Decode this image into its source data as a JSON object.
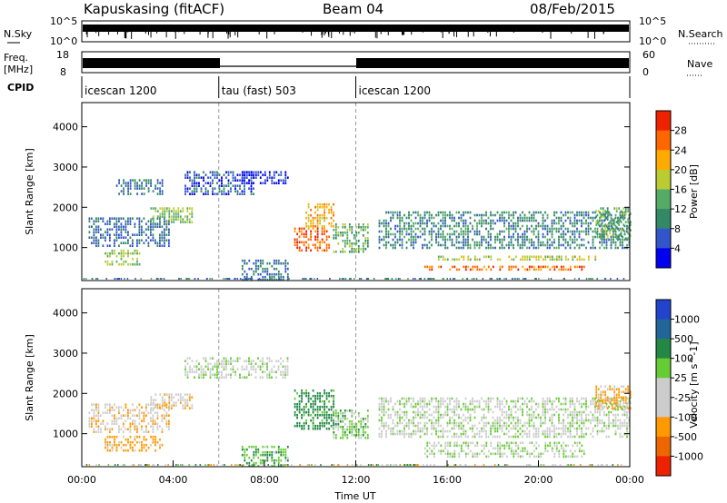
{
  "header": {
    "station": "Kapuskasing (fitACF)",
    "beam": "Beam 04",
    "date": "08/Feb/2015"
  },
  "panels": {
    "nsky": {
      "label": "N.Sky",
      "ticks": [
        "10^5",
        "10^0"
      ],
      "right_label": "N.Search",
      "right_ticks": [
        "10^5",
        "10^0"
      ]
    },
    "freq": {
      "label_line1": "Freq.",
      "label_line2": "[MHz]",
      "ticks": [
        "18",
        "8"
      ],
      "right_label": "Nave",
      "right_ticks": [
        "60",
        "0"
      ]
    },
    "cpid": {
      "label": "CPID",
      "segments": [
        {
          "start_hour": 0,
          "end_hour": 6,
          "name": "icescan 1200"
        },
        {
          "start_hour": 6,
          "end_hour": 12,
          "name": "tau (fast) 503"
        },
        {
          "start_hour": 12,
          "end_hour": 24,
          "name": "icescan 1200"
        }
      ]
    }
  },
  "chart_data": [
    {
      "type": "heatmap",
      "title": "Power",
      "xlabel": "",
      "ylabel": "Slant Range [km]",
      "ylim": [
        180,
        4600
      ],
      "yticks": [
        "1000",
        "2000",
        "3000",
        "4000"
      ],
      "colorbar_label": "Power [dB]",
      "colorbar_ticks": [
        "4",
        "8",
        "12",
        "16",
        "20",
        "24",
        "28"
      ],
      "colorbar_colors": [
        "#0000ee",
        "#3355cc",
        "#338866",
        "#55aa66",
        "#bbcc33",
        "#ffaa00",
        "#ff6600",
        "#ee2200"
      ],
      "regions": [
        {
          "t0": 0.3,
          "t1": 3.8,
          "r0": 1050,
          "r1": 1750,
          "value": 8
        },
        {
          "t0": 1.0,
          "t1": 2.5,
          "r0": 600,
          "r1": 950,
          "value": 16
        },
        {
          "t0": 1.5,
          "t1": 3.5,
          "r0": 2300,
          "r1": 2700,
          "value": 8
        },
        {
          "t0": 3.0,
          "t1": 4.8,
          "r0": 1600,
          "r1": 2000,
          "value": 16
        },
        {
          "t0": 4.5,
          "t1": 7.5,
          "r0": 2300,
          "r1": 2900,
          "value": 6
        },
        {
          "t0": 7.0,
          "t1": 9.0,
          "r0": 2600,
          "r1": 2900,
          "value": 4
        },
        {
          "t0": 7.0,
          "t1": 9.0,
          "r0": 200,
          "r1": 700,
          "value": 8
        },
        {
          "t0": 9.3,
          "t1": 10.8,
          "r0": 900,
          "r1": 1500,
          "value": 27
        },
        {
          "t0": 9.8,
          "t1": 11.0,
          "r0": 1500,
          "r1": 2100,
          "value": 22
        },
        {
          "t0": 11.0,
          "t1": 12.5,
          "r0": 900,
          "r1": 1600,
          "value": 14
        },
        {
          "t0": 13.0,
          "t1": 24.0,
          "r0": 1000,
          "r1": 1900,
          "value": 10
        },
        {
          "t0": 15.0,
          "t1": 22.0,
          "r0": 450,
          "r1": 550,
          "value": 26
        },
        {
          "t0": 15.5,
          "t1": 22.5,
          "r0": 700,
          "r1": 800,
          "value": 18
        },
        {
          "t0": 22.5,
          "t1": 24.0,
          "r0": 1200,
          "r1": 2000,
          "value": 14
        }
      ]
    },
    {
      "type": "heatmap",
      "title": "Velocity",
      "xlabel": "Time UT",
      "ylabel": "Slant Range [km]",
      "ylim": [
        180,
        4600
      ],
      "yticks": [
        "1000",
        "2000",
        "3000",
        "4000"
      ],
      "xticks": [
        "00:00",
        "04:00",
        "08:00",
        "12:00",
        "16:00",
        "20:00",
        "00:00"
      ],
      "xlim_hours": [
        0,
        24
      ],
      "colorbar_label": "Velocity [m s^-1]",
      "colorbar_ticks": [
        "1000",
        "500",
        "100",
        "25",
        "-25",
        "-100",
        "-500",
        "-1000"
      ],
      "colorbar_colors": [
        "#2244cc",
        "#226699",
        "#228844",
        "#66cc33",
        "#cccccc",
        "#cccccc",
        "#ff9900",
        "#ee6600",
        "#ee2200"
      ],
      "regions": [
        {
          "t0": 0.3,
          "t1": 3.8,
          "r0": 1050,
          "r1": 1750,
          "value": -80
        },
        {
          "t0": 1.0,
          "t1": 3.5,
          "r0": 600,
          "r1": 950,
          "value": -150
        },
        {
          "t0": 3.0,
          "t1": 4.8,
          "r0": 1600,
          "r1": 2000,
          "value": -60
        },
        {
          "t0": 4.5,
          "t1": 9.0,
          "r0": 2400,
          "r1": 2900,
          "value": 0
        },
        {
          "t0": 7.0,
          "t1": 9.0,
          "r0": 200,
          "r1": 700,
          "value": 80
        },
        {
          "t0": 9.3,
          "t1": 11.0,
          "r0": 1100,
          "r1": 2100,
          "value": 150
        },
        {
          "t0": 11.0,
          "t1": 12.5,
          "r0": 900,
          "r1": 1600,
          "value": 60
        },
        {
          "t0": 13.0,
          "t1": 24.0,
          "r0": 900,
          "r1": 1900,
          "value": 0
        },
        {
          "t0": 15.0,
          "t1": 22.0,
          "r0": 400,
          "r1": 800,
          "value": 10
        },
        {
          "t0": 22.5,
          "t1": 24.0,
          "r0": 1600,
          "r1": 2200,
          "value": -120
        }
      ]
    }
  ]
}
